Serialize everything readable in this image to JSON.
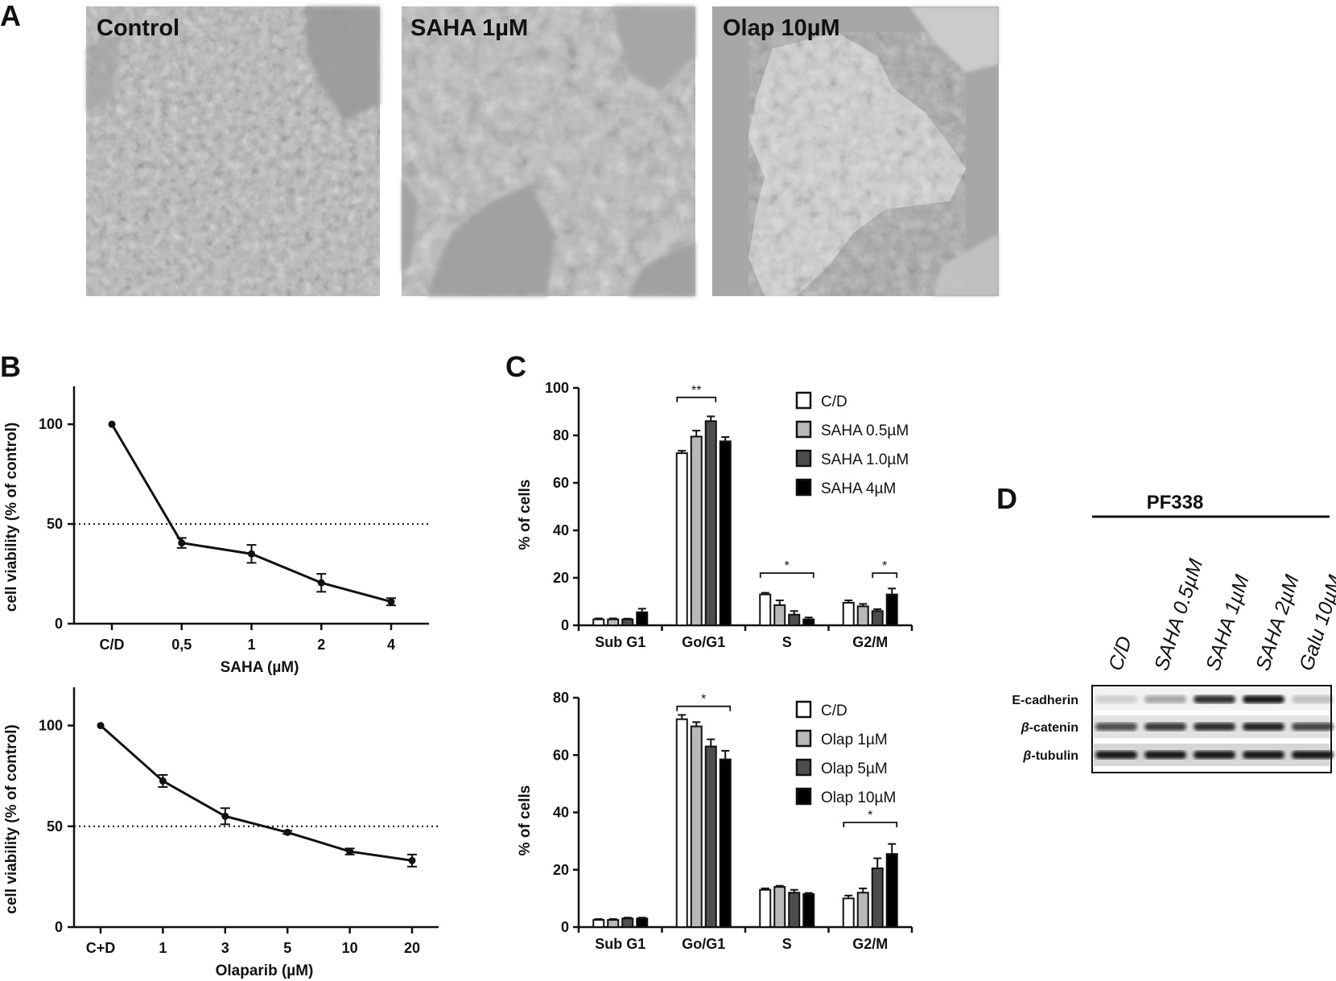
{
  "panels": {
    "A": "A",
    "B": "B",
    "C": "C",
    "D": "D"
  },
  "micrographs": {
    "labels": [
      "Control",
      "SAHA 1µM",
      "Olap 10µM"
    ]
  },
  "chart_data": [
    {
      "id": "B-top",
      "type": "line",
      "categories": [
        "C/D",
        "0,5",
        "1",
        "2",
        "4"
      ],
      "values": [
        100,
        40.5,
        35,
        20.5,
        11
      ],
      "errors": [
        0,
        2.5,
        4.5,
        4.5,
        1.8
      ],
      "xlabel": "SAHA (µM)",
      "ylabel": "cell viability (% of control)",
      "ylim": [
        0,
        115
      ],
      "yticks": [
        0,
        50,
        100
      ],
      "reference_line": 50
    },
    {
      "id": "B-bottom",
      "type": "line",
      "categories": [
        "C+D",
        "1",
        "3",
        "5",
        "10",
        "20"
      ],
      "values": [
        100,
        72.5,
        55,
        47,
        37.5,
        33
      ],
      "errors": [
        0,
        3,
        4,
        0.8,
        1.5,
        3
      ],
      "xlabel": "Olaparib (µM)",
      "ylabel": "cell viability (% of control)",
      "ylim": [
        0,
        115
      ],
      "yticks": [
        0,
        50,
        100
      ],
      "reference_line": 50
    },
    {
      "id": "C-top",
      "type": "bar",
      "categories": [
        "Sub G1",
        "Go/G1",
        "S",
        "G2/M"
      ],
      "ylabel": "% of cells",
      "ylim": [
        0,
        100
      ],
      "yticks": [
        0,
        20,
        40,
        60,
        80,
        100
      ],
      "series": [
        {
          "name": "C/D",
          "values": [
            2.5,
            72.5,
            13,
            9.5
          ],
          "errors": [
            0.4,
            1,
            0.7,
            1
          ]
        },
        {
          "name": "SAHA 0.5µM",
          "values": [
            2.5,
            79.5,
            8.5,
            8
          ],
          "errors": [
            0.4,
            2.5,
            2,
            1
          ]
        },
        {
          "name": "SAHA 1.0µM",
          "values": [
            2.5,
            86,
            4.5,
            6
          ],
          "errors": [
            0.3,
            2,
            1.5,
            0.8
          ]
        },
        {
          "name": "SAHA 4µM",
          "values": [
            5.5,
            77.5,
            2.5,
            13
          ],
          "errors": [
            1.5,
            1.8,
            0.8,
            2.5
          ]
        }
      ],
      "significance": [
        {
          "category": "Go/G1",
          "from": 0,
          "to": 2,
          "label": "**",
          "y": 96
        },
        {
          "category": "S",
          "from": 0,
          "to": 3,
          "label": "*",
          "y": 22
        },
        {
          "category": "G2/M",
          "from": 2,
          "to": 3,
          "label": "*",
          "y": 22
        }
      ]
    },
    {
      "id": "C-bottom",
      "type": "bar",
      "categories": [
        "Sub G1",
        "Go/G1",
        "S",
        "G2/M"
      ],
      "ylabel": "% of cells",
      "ylim": [
        0,
        80
      ],
      "yticks": [
        0,
        20,
        40,
        60,
        80
      ],
      "series": [
        {
          "name": "C/D",
          "values": [
            2.5,
            72.5,
            13,
            10
          ],
          "errors": [
            0.3,
            1.5,
            0.5,
            1
          ]
        },
        {
          "name": "Olap 1µM",
          "values": [
            2.5,
            70,
            14,
            12
          ],
          "errors": [
            0.3,
            1.5,
            0.4,
            1.5
          ]
        },
        {
          "name": "Olap 5µM",
          "values": [
            3,
            63,
            12,
            20.5
          ],
          "errors": [
            0.3,
            2.5,
            1,
            3.5
          ]
        },
        {
          "name": "Olap 10µM",
          "values": [
            3,
            58.5,
            11.5,
            25.5
          ],
          "errors": [
            0.3,
            3,
            0.4,
            3.5
          ]
        }
      ],
      "significance": [
        {
          "category": "Go/G1",
          "from": 0,
          "to": 3,
          "label": "*",
          "y": 77
        },
        {
          "category": "G2/M",
          "from": 0,
          "to": 3,
          "label": "*",
          "y": 36.5
        }
      ]
    }
  ],
  "western_blot": {
    "group": "PF338",
    "lanes": [
      "C/D",
      "SAHA 0.5µM",
      "SAHA 1µM",
      "SAHA 2µM",
      "Galu 10µM"
    ],
    "proteins": [
      "E-cadherin",
      "β-catenin",
      "β-tubulin"
    ],
    "protein_prefix": [
      "",
      "β",
      "β"
    ],
    "protein_suffix": [
      "E-cadherin",
      "-catenin",
      "-tubulin"
    ],
    "band_intensity": [
      [
        0.15,
        0.35,
        0.85,
        0.95,
        0.2
      ],
      [
        0.7,
        0.8,
        0.85,
        0.9,
        0.75
      ],
      [
        0.95,
        0.95,
        0.95,
        0.95,
        0.95
      ]
    ]
  }
}
